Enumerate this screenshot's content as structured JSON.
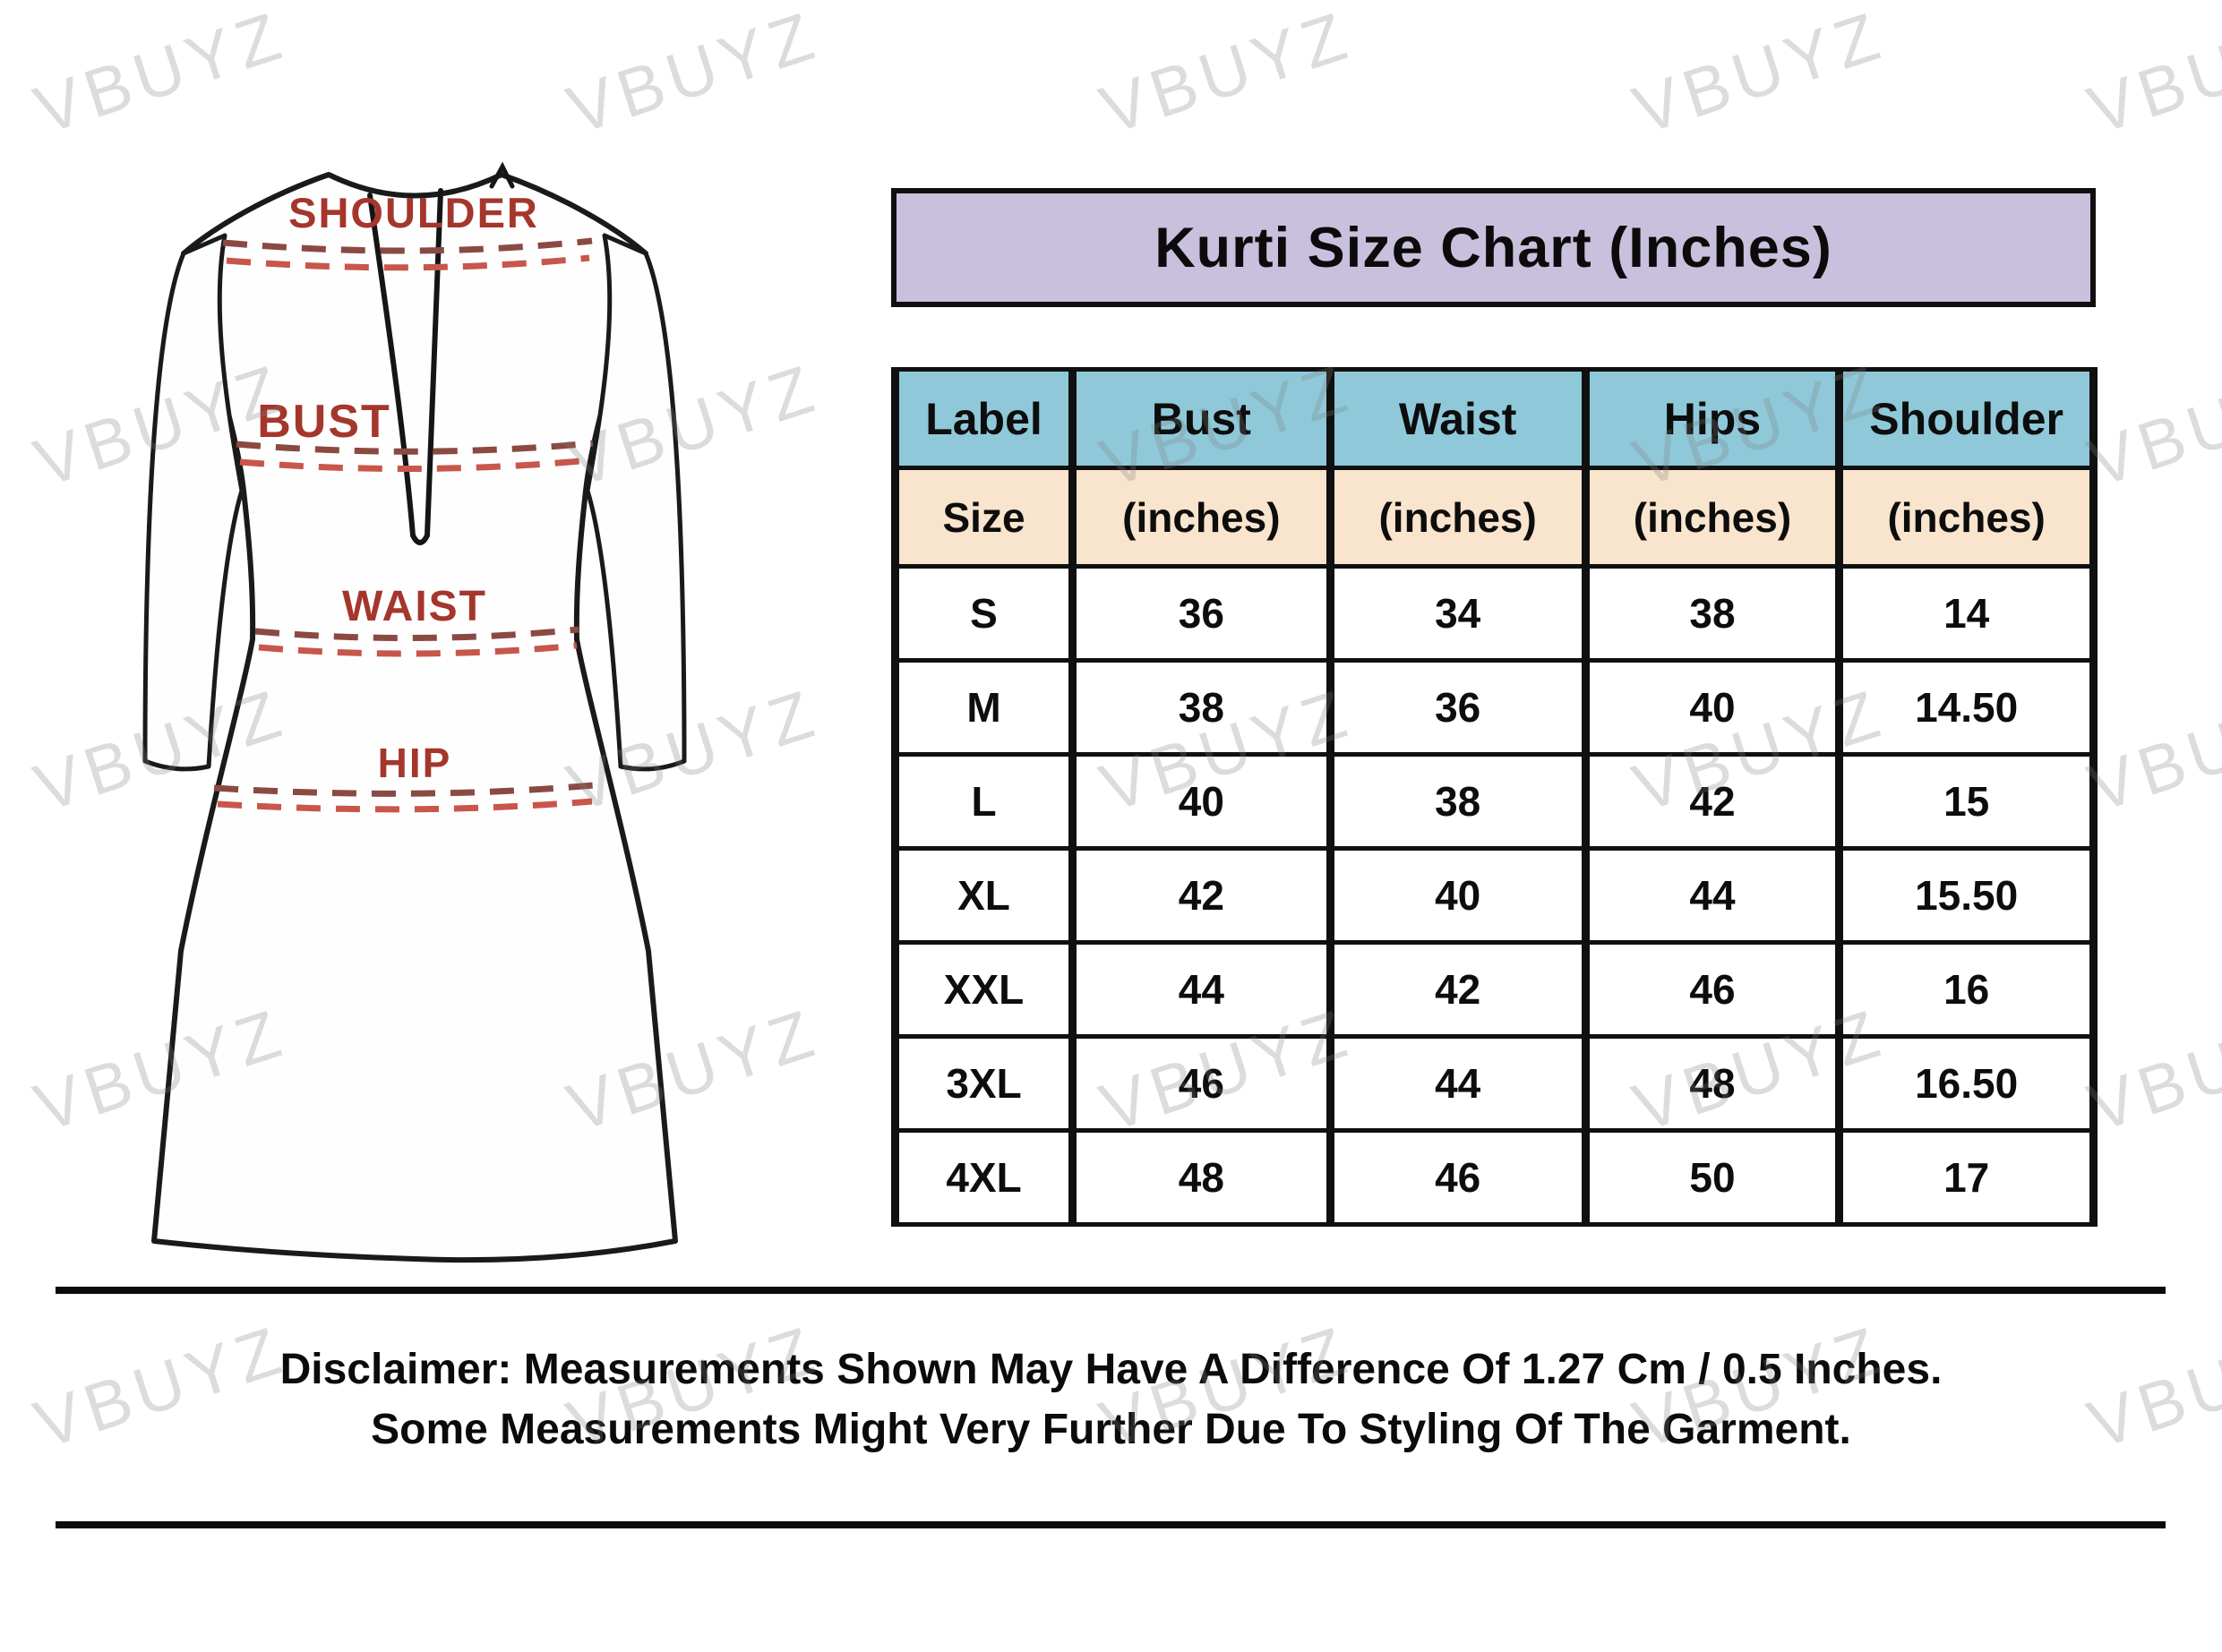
{
  "title": "Kurti Size Chart (Inches)",
  "garment": {
    "labels": [
      "SHOULDER",
      "BUST",
      "WAIST",
      "HIP"
    ]
  },
  "table": {
    "header": [
      "Label",
      "Bust",
      "Waist",
      "Hips",
      "Shoulder"
    ],
    "subheader": [
      "Size",
      "(inches)",
      "(inches)",
      "(inches)",
      "(inches)"
    ],
    "rows": [
      {
        "label": "S",
        "bust": "36",
        "waist": "34",
        "hips": "38",
        "shoulder": "14"
      },
      {
        "label": "M",
        "bust": "38",
        "waist": "36",
        "hips": "40",
        "shoulder": "14.50"
      },
      {
        "label": "L",
        "bust": "40",
        "waist": "38",
        "hips": "42",
        "shoulder": "15"
      },
      {
        "label": "XL",
        "bust": "42",
        "waist": "40",
        "hips": "44",
        "shoulder": "15.50"
      },
      {
        "label": "XXL",
        "bust": "44",
        "waist": "42",
        "hips": "46",
        "shoulder": "16"
      },
      {
        "label": "3XL",
        "bust": "46",
        "waist": "44",
        "hips": "48",
        "shoulder": "16.50"
      },
      {
        "label": "4XL",
        "bust": "48",
        "waist": "46",
        "hips": "50",
        "shoulder": "17"
      }
    ]
  },
  "disclaimer": {
    "line1": "Disclaimer: Measurements Shown May Have A Difference Of 1.27 Cm / 0.5 Inches.",
    "line2": "Some Measurements Might Very Further Due To Styling Of The Garment."
  },
  "watermark": {
    "text": "VBUYZ"
  },
  "colors": {
    "title_bg": "#c9c0dd",
    "header_blue": "#8fc9d9",
    "header_peach": "#f9e4cd",
    "label_red": "#a5362c",
    "dash_dark": "#8a4a42",
    "dash_red": "#c8564a",
    "outline_black": "#1a1a1a"
  },
  "chart_data": {
    "type": "table",
    "title": "Kurti Size Chart (Inches)",
    "columns": [
      "Label Size",
      "Bust (inches)",
      "Waist (inches)",
      "Hips (inches)",
      "Shoulder (inches)"
    ],
    "rows": [
      [
        "S",
        36,
        34,
        38,
        14
      ],
      [
        "M",
        38,
        36,
        40,
        14.5
      ],
      [
        "L",
        40,
        38,
        42,
        15
      ],
      [
        "XL",
        42,
        40,
        44,
        15.5
      ],
      [
        "XXL",
        44,
        42,
        46,
        16
      ],
      [
        "3XL",
        46,
        44,
        48,
        16.5
      ],
      [
        "4XL",
        48,
        46,
        50,
        17
      ]
    ],
    "measurement_lines": [
      "SHOULDER",
      "BUST",
      "WAIST",
      "HIP"
    ]
  }
}
